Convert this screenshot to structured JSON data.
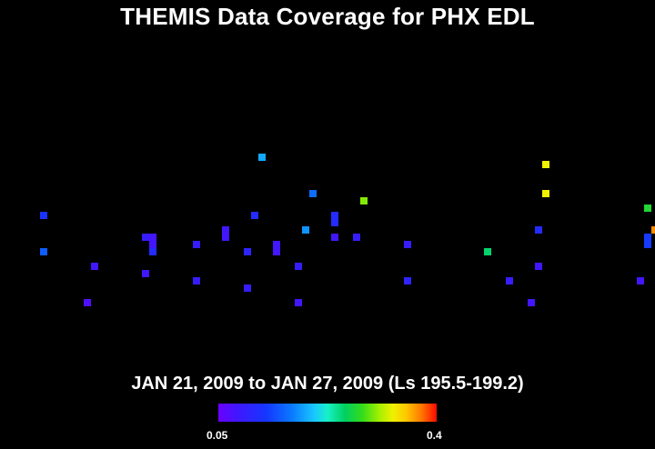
{
  "title": "THEMIS Data Coverage for PHX EDL",
  "subtitle": "JAN 21, 2009 to JAN 27, 2009 (Ls 195.5-199.2)",
  "colorbar": {
    "min_label": "0.05",
    "max_label": "0.4",
    "min": 0.05,
    "max": 0.4
  },
  "chart_data": {
    "type": "heatmap",
    "title": "THEMIS Data Coverage for PHX EDL",
    "subtitle": "JAN 21, 2009 to JAN 27, 2009 (Ls 195.5-199.2)",
    "grid": false,
    "colorbar_range": [
      0.05,
      0.4
    ],
    "x_range": [
      0,
      90
    ],
    "y_range": [
      0,
      48
    ],
    "points": [
      {
        "x": 5,
        "y": 29,
        "v": 0.12
      },
      {
        "x": 5,
        "y": 34,
        "v": 0.15
      },
      {
        "x": 11,
        "y": 41,
        "v": 0.07
      },
      {
        "x": 12,
        "y": 36,
        "v": 0.08
      },
      {
        "x": 19,
        "y": 32,
        "v": 0.09
      },
      {
        "x": 19,
        "y": 37,
        "v": 0.08
      },
      {
        "x": 20,
        "y": 32,
        "v": 0.08
      },
      {
        "x": 20,
        "y": 33,
        "v": 0.08
      },
      {
        "x": 20,
        "y": 34,
        "v": 0.11
      },
      {
        "x": 26,
        "y": 33,
        "v": 0.09
      },
      {
        "x": 26,
        "y": 38,
        "v": 0.09
      },
      {
        "x": 30,
        "y": 31,
        "v": 0.08
      },
      {
        "x": 30,
        "y": 32,
        "v": 0.08
      },
      {
        "x": 33,
        "y": 34,
        "v": 0.1
      },
      {
        "x": 33,
        "y": 39,
        "v": 0.09
      },
      {
        "x": 34,
        "y": 29,
        "v": 0.11
      },
      {
        "x": 35,
        "y": 21,
        "v": 0.19
      },
      {
        "x": 37,
        "y": 33,
        "v": 0.08
      },
      {
        "x": 37,
        "y": 34,
        "v": 0.08
      },
      {
        "x": 40,
        "y": 36,
        "v": 0.09
      },
      {
        "x": 40,
        "y": 41,
        "v": 0.08
      },
      {
        "x": 41,
        "y": 31,
        "v": 0.18
      },
      {
        "x": 42,
        "y": 26,
        "v": 0.16
      },
      {
        "x": 45,
        "y": 29,
        "v": 0.11
      },
      {
        "x": 45,
        "y": 30,
        "v": 0.11
      },
      {
        "x": 45,
        "y": 32,
        "v": 0.08
      },
      {
        "x": 48,
        "y": 32,
        "v": 0.09
      },
      {
        "x": 49,
        "y": 27,
        "v": 0.3
      },
      {
        "x": 55,
        "y": 33,
        "v": 0.09
      },
      {
        "x": 55,
        "y": 38,
        "v": 0.1
      },
      {
        "x": 66,
        "y": 34,
        "v": 0.25
      },
      {
        "x": 69,
        "y": 38,
        "v": 0.09
      },
      {
        "x": 72,
        "y": 41,
        "v": 0.08
      },
      {
        "x": 73,
        "y": 31,
        "v": 0.11
      },
      {
        "x": 73,
        "y": 36,
        "v": 0.08
      },
      {
        "x": 74,
        "y": 22,
        "v": 0.33
      },
      {
        "x": 74,
        "y": 26,
        "v": 0.33
      },
      {
        "x": 87,
        "y": 38,
        "v": 0.08
      },
      {
        "x": 88,
        "y": 28,
        "v": 0.27
      },
      {
        "x": 88,
        "y": 32,
        "v": 0.13
      },
      {
        "x": 88,
        "y": 33,
        "v": 0.13
      },
      {
        "x": 89,
        "y": 31,
        "v": 0.37
      }
    ]
  }
}
